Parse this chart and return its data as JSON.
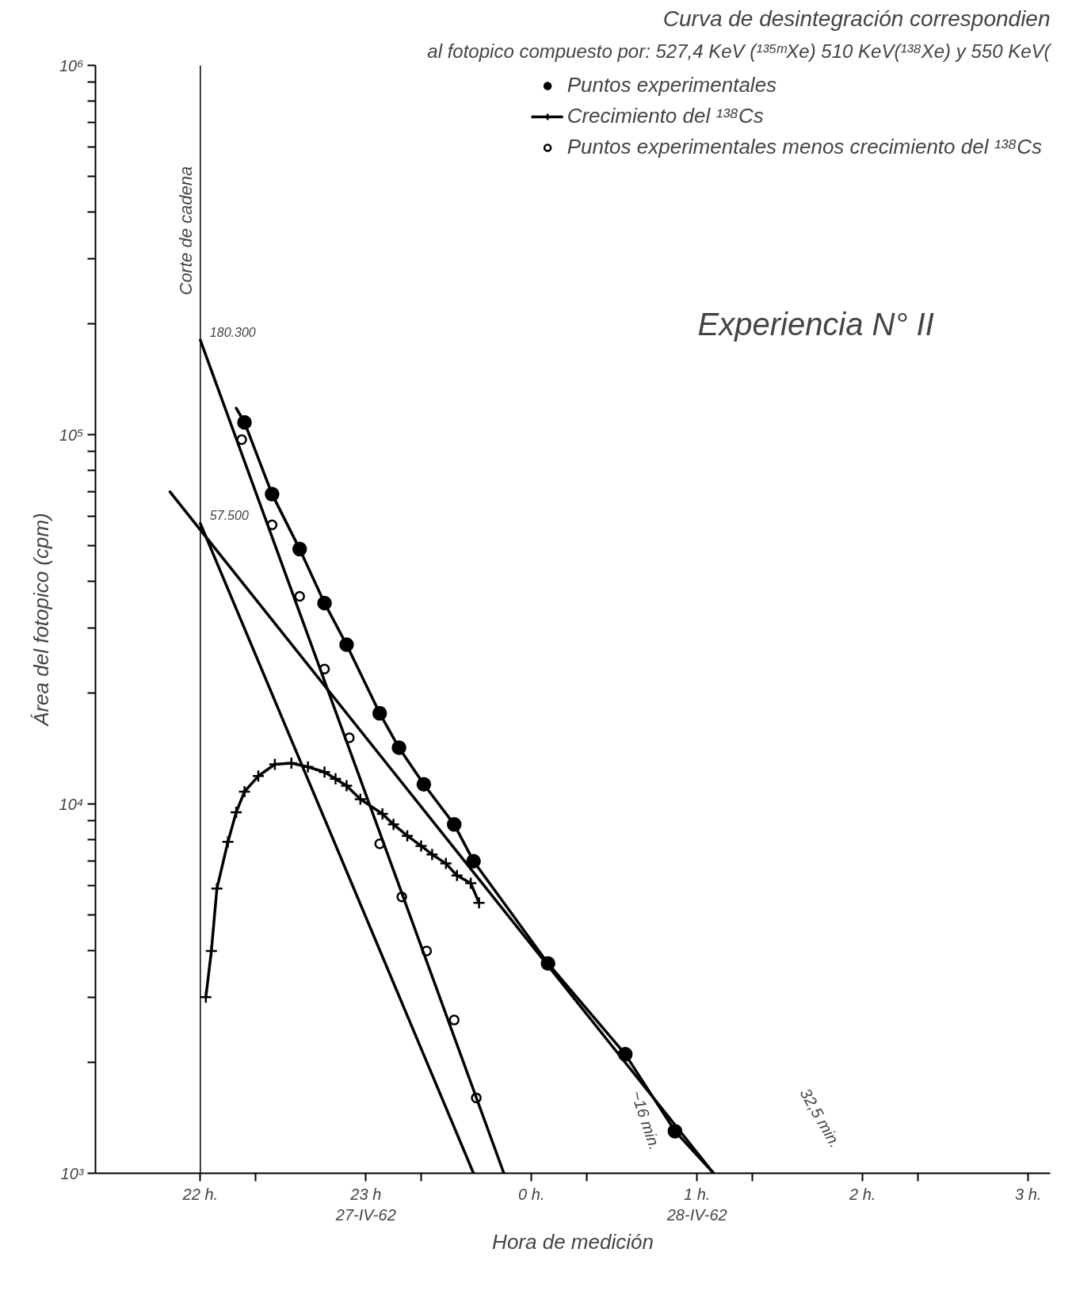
{
  "chart_data": {
    "type": "line",
    "title": "Curva de desintegración correspondien",
    "subtitle": "al fotopico compuesto por: 527,4 KeV (¹³⁵ᵐXe) 510 KeV(¹³⁸Xe) y 550 KeV(",
    "xlabel": "Hora de medición",
    "ylabel": "Área del fotopico (cpm)",
    "log": "y",
    "grid": false,
    "legend": "top right",
    "xlim": [
      "1962-04-27T21:22",
      "1962-04-28T03:08"
    ],
    "ylim": [
      1000,
      1000000
    ],
    "xticks": [
      {
        "value": "1962-04-27T22:00",
        "label": "22 h."
      },
      {
        "value": "1962-04-27T22:20",
        "label": null
      },
      {
        "value": "1962-04-27T23:00",
        "label": "23 h\n27-IV-62"
      },
      {
        "value": "1962-04-27T23:20",
        "label": null
      },
      {
        "value": "1962-04-28T00:00",
        "label": "0 h."
      },
      {
        "value": "1962-04-28T00:20",
        "label": null
      },
      {
        "value": "1962-04-28T01:00",
        "label": "1 h.\n28-IV-62"
      },
      {
        "value": "1962-04-28T01:20",
        "label": null
      },
      {
        "value": "1962-04-28T02:00",
        "label": "2 h."
      },
      {
        "value": "1962-04-28T02:20",
        "label": null
      },
      {
        "value": "1962-04-28T03:00",
        "label": "3 h."
      }
    ],
    "yticks": [
      {
        "value": 1000,
        "label": "10³"
      },
      {
        "value": 2000,
        "label": null
      },
      {
        "value": 3000,
        "label": null
      },
      {
        "value": 4000,
        "label": null
      },
      {
        "value": 5000,
        "label": null
      },
      {
        "value": 6000,
        "label": null
      },
      {
        "value": 7000,
        "label": null
      },
      {
        "value": 8000,
        "label": null
      },
      {
        "value": 9000,
        "label": null
      },
      {
        "value": 10000,
        "label": "10⁴"
      },
      {
        "value": 20000,
        "label": null
      },
      {
        "value": 30000,
        "label": null
      },
      {
        "value": 40000,
        "label": null
      },
      {
        "value": 50000,
        "label": null
      },
      {
        "value": 60000,
        "label": null
      },
      {
        "value": 70000,
        "label": null
      },
      {
        "value": 80000,
        "label": null
      },
      {
        "value": 90000,
        "label": null
      },
      {
        "value": 100000,
        "label": "10⁵"
      },
      {
        "value": 200000,
        "label": null
      },
      {
        "value": 300000,
        "label": null
      },
      {
        "value": 400000,
        "label": null
      },
      {
        "value": 500000,
        "label": null
      },
      {
        "value": 600000,
        "label": null
      },
      {
        "value": 700000,
        "label": null
      },
      {
        "value": 800000,
        "label": null
      },
      {
        "value": 900000,
        "label": null
      },
      {
        "value": 1000000,
        "label": "10⁶"
      }
    ],
    "series": [
      {
        "name": "Puntos experimentales",
        "type": "scatter",
        "marker": "circle",
        "color": "#000000",
        "x": [
          "1962-04-27T22:16",
          "1962-04-27T22:26",
          "1962-04-27T22:36",
          "1962-04-27T22:45",
          "1962-04-27T22:53",
          "1962-04-27T23:05",
          "1962-04-27T23:12",
          "1962-04-27T23:21",
          "1962-04-27T23:32",
          "1962-04-27T23:39",
          "1962-04-28T00:06",
          "1962-04-28T00:34",
          "1962-04-28T00:52"
        ],
        "values": [
          108000,
          69000,
          49000,
          35000,
          27000,
          17600,
          14200,
          11300,
          8800,
          7000,
          3700,
          2100,
          1300
        ]
      },
      {
        "marker": "none",
        "color": "#000000",
        "x": [
          "1962-04-27T22:13",
          "1962-04-27T22:16",
          "1962-04-27T22:26",
          "1962-04-27T22:36",
          "1962-04-27T22:45",
          "1962-04-27T22:53",
          "1962-04-27T23:05",
          "1962-04-27T23:12",
          "1962-04-27T23:21",
          "1962-04-27T23:32",
          "1962-04-27T23:39",
          "1962-04-28T00:06",
          "1962-04-28T00:34",
          "1962-04-28T00:52",
          "1962-04-28T01:06"
        ],
        "values": [
          118000,
          108000,
          69000,
          49000,
          35000,
          27000,
          17600,
          14200,
          11300,
          8800,
          7000,
          3700,
          2100,
          1300,
          1000
        ]
      },
      {
        "name": "Crecimiento del ¹³⁸Cs",
        "marker": "cross",
        "color": "#000000",
        "x": [
          "1962-04-27T22:02",
          "1962-04-27T22:04",
          "1962-04-27T22:06",
          "1962-04-27T22:10",
          "1962-04-27T22:13",
          "1962-04-27T22:16",
          "1962-04-27T22:21",
          "1962-04-27T22:27",
          "1962-04-27T22:33",
          "1962-04-27T22:39",
          "1962-04-27T22:45",
          "1962-04-27T22:49",
          "1962-04-27T22:53",
          "1962-04-27T22:58",
          "1962-04-27T23:06",
          "1962-04-27T23:10",
          "1962-04-27T23:15",
          "1962-04-27T23:20",
          "1962-04-27T23:24",
          "1962-04-27T23:29",
          "1962-04-27T23:33",
          "1962-04-27T23:38",
          "1962-04-27T23:41"
        ],
        "values": [
          3000,
          4000,
          5900,
          7900,
          9500,
          10800,
          11900,
          12800,
          12900,
          12600,
          12200,
          11700,
          11200,
          10300,
          9400,
          8800,
          8200,
          7700,
          7300,
          6900,
          6400,
          6100,
          5400
        ]
      },
      {
        "name": "Puntos experimentales menos crecimiento del ¹³⁸Cs",
        "type": "scatter",
        "marker": "circle_open",
        "color": "#000000",
        "x": [
          "1962-04-27T22:15",
          "1962-04-27T22:26",
          "1962-04-27T22:36",
          "1962-04-27T22:45",
          "1962-04-27T22:54",
          "1962-04-27T23:05",
          "1962-04-27T23:13",
          "1962-04-27T23:22",
          "1962-04-27T23:32",
          "1962-04-27T23:40"
        ],
        "values": [
          97000,
          57000,
          36500,
          23200,
          15100,
          7800,
          5600,
          4000,
          2600,
          1600
        ]
      },
      {
        "marker": "none",
        "color": "#000000",
        "x": [
          "1962-04-27T22:00",
          "1962-04-27T23:50"
        ],
        "values": [
          180300,
          1000
        ]
      },
      {
        "marker": "none",
        "color": "#000000",
        "x": [
          "1962-04-27T21:49",
          "1962-04-28T01:06"
        ],
        "values": [
          70000,
          1000
        ]
      },
      {
        "marker": "none",
        "color": "#000000",
        "x": [
          "1962-04-27T22:00",
          "1962-04-27T23:39"
        ],
        "values": [
          57500,
          1000
        ]
      }
    ],
    "ref_lines": [
      {
        "axis": "x",
        "value": "1962-04-27T22:00",
        "label": "Corte de cadena",
        "color": "#000000"
      }
    ],
    "annotations": [
      {
        "text": "180.300",
        "x": "1962-04-27T22:00",
        "y": 180300
      },
      {
        "text": "57.500",
        "x": "1962-04-27T22:00",
        "y": 57500
      },
      "~16 min.",
      "32,5 min.",
      "Experiencia N° II"
    ]
  }
}
